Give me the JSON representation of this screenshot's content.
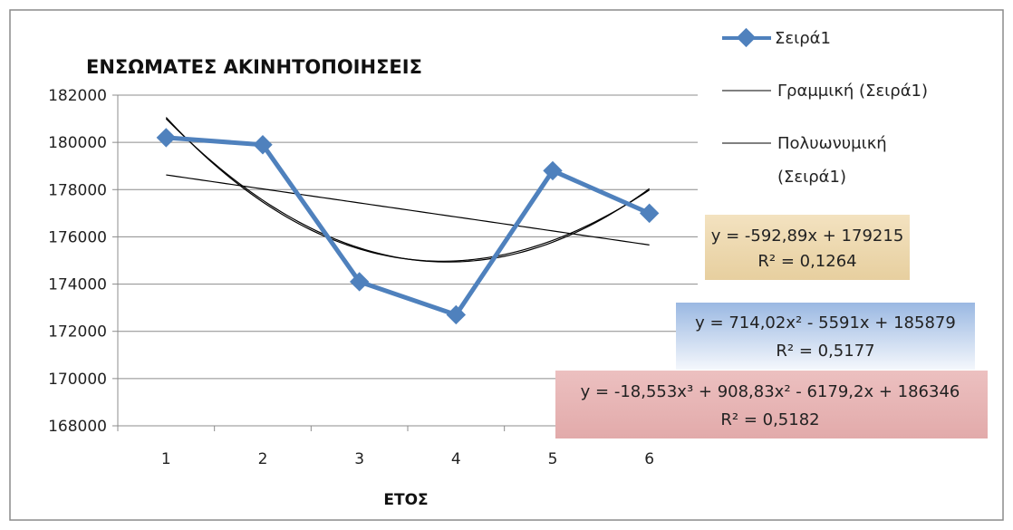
{
  "chart_data": {
    "type": "line",
    "title": "ΕΝΣΩΜΑΤΕΣ ΑΚΙΝΗΤΟΠΟΙΗΣΕΙΣ",
    "xlabel": "ΕΤΟΣ",
    "ylabel": "",
    "x": [
      1,
      2,
      3,
      4,
      5,
      6
    ],
    "ylim": [
      168000,
      182000
    ],
    "yticks": [
      168000,
      170000,
      172000,
      174000,
      176000,
      178000,
      180000,
      182000
    ],
    "grid": true,
    "legend_position": "top-right",
    "series": [
      {
        "name": "Σειρά1",
        "values": [
          180200,
          179900,
          174100,
          172700,
          178800,
          177000
        ],
        "color": "#4f81bd",
        "marker": "diamond"
      }
    ],
    "trendlines": [
      {
        "name": "Γραμμική (Σειρά1)",
        "kind": "linear",
        "coefficients": [
          179215,
          -592.89
        ],
        "equation": "y = -592,89x + 179215",
        "r2": "R² = 0,1264",
        "box_color": "#f0dcb4",
        "color": "#000000"
      },
      {
        "name": "Πολυωνυμική (Σειρά1)",
        "kind": "polynomial",
        "coefficients": [
          185879,
          -5591,
          714.02
        ],
        "equation": "y = 714,02x² - 5591x + 185879",
        "r2": "R² = 0,5177",
        "box_color": "#b9cde9",
        "color": "#000000"
      },
      {
        "kind": "polynomial",
        "coefficients": [
          186346,
          -6179.2,
          908.83,
          -18.553
        ],
        "equation": "y = -18,553x³ + 908,83x² - 6179,2x + 186346",
        "r2": "R² = 0,5182",
        "box_color": "#e8b4b4",
        "color": "#000000"
      }
    ],
    "legend": {
      "items": [
        {
          "label": "Σειρά1",
          "style": "marker-line"
        },
        {
          "label": "Γραμμική (Σειρά1)",
          "style": "line"
        },
        {
          "label_lines": [
            "Πολυωνυμική",
            "(Σειρά1)"
          ],
          "style": "line"
        }
      ]
    }
  }
}
